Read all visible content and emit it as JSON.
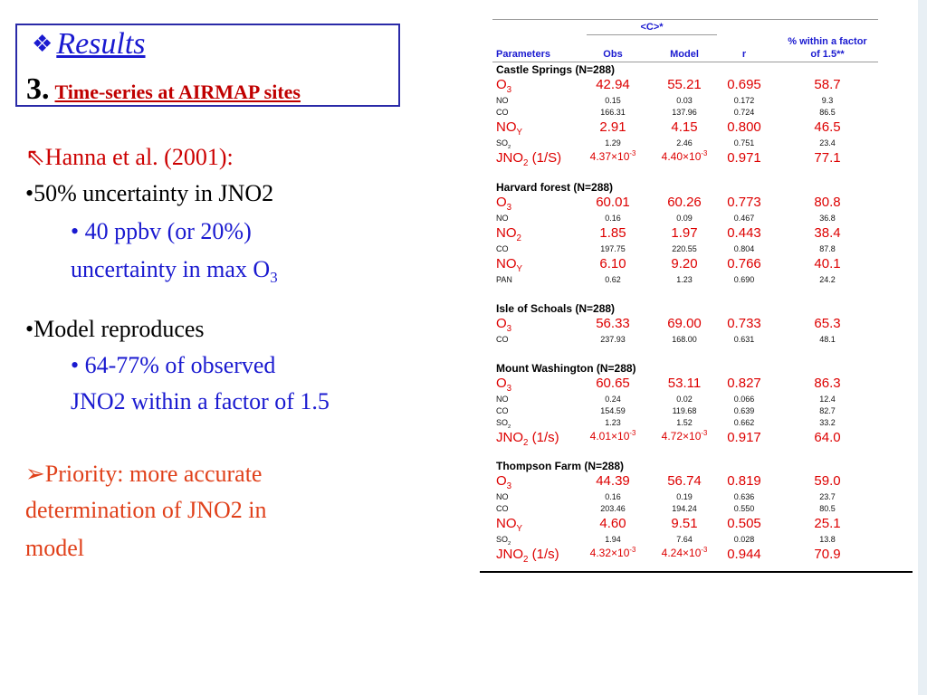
{
  "title": {
    "bullet": "❖",
    "heading": "Results",
    "number": "3.",
    "subtitle": "Time-series at AIRMAP sites"
  },
  "left": {
    "hanna_arrow": "⇖",
    "hanna": "Hanna et al. (2001):",
    "b1": "•50% uncertainty in JNO2",
    "b1a_line1": "• 40 ppbv (or 20%)",
    "b1a_line2": "uncertainty in max O",
    "b1a_sub": "3",
    "b2": "•Model reproduces",
    "b2a_line1": "• 64-77% of observed",
    "b2a_line2": "JNO2 within a factor of 1.5",
    "priority_arrow": "➢",
    "p_line1": "Priority: more accurate",
    "p_line2": "determination of JNO2 in",
    "p_line3": "model"
  },
  "table": {
    "group_header": "<C>*",
    "headers": {
      "param": "Parameters",
      "obs": "Obs",
      "model": "Model",
      "r": "r",
      "factor1": "% within a factor",
      "factor2": "of 1.5**"
    },
    "sites": [
      {
        "name": "Castle Springs (N=288)",
        "rows": [
          {
            "p": "O",
            "ps": "3",
            "o": "42.94",
            "m": "55.21",
            "r": "0.695",
            "f": "58.7",
            "big": true
          },
          {
            "p": "NO",
            "o": "0.15",
            "m": "0.03",
            "r": "0.172",
            "f": "9.3",
            "big": false
          },
          {
            "p": "CO",
            "o": "166.31",
            "m": "137.96",
            "r": "0.724",
            "f": "86.5",
            "big": false
          },
          {
            "p": "NO",
            "ps": "Y",
            "o": "2.91",
            "m": "4.15",
            "r": "0.800",
            "f": "46.5",
            "big": true
          },
          {
            "p": "SO",
            "ps": "2",
            "o": "1.29",
            "m": "2.46",
            "r": "0.751",
            "f": "23.4",
            "big": false
          },
          {
            "p": "JNO",
            "ps": "2",
            "pt": " (1/S)",
            "o": "4.37×10",
            "oe": "-3",
            "m": "4.40×10",
            "me": "-3",
            "r": "0.971",
            "f": "77.1",
            "big": true
          }
        ]
      },
      {
        "name": "Harvard forest (N=288)",
        "rows": [
          {
            "p": "O",
            "ps": "3",
            "o": "60.01",
            "m": "60.26",
            "r": "0.773",
            "f": "80.8",
            "big": true
          },
          {
            "p": "NO",
            "o": "0.16",
            "m": "0.09",
            "r": "0.467",
            "f": "36.8",
            "big": false
          },
          {
            "p": "NO",
            "ps": "2",
            "o": "1.85",
            "m": "1.97",
            "r": "0.443",
            "f": "38.4",
            "big": true
          },
          {
            "p": "CO",
            "o": "197.75",
            "m": "220.55",
            "r": "0.804",
            "f": "87.8",
            "big": false
          },
          {
            "p": "NO",
            "ps": "Y",
            "o": "6.10",
            "m": "9.20",
            "r": "0.766",
            "f": "40.1",
            "big": true
          },
          {
            "p": "PAN",
            "o": "0.62",
            "m": "1.23",
            "r": "0.690",
            "f": "24.2",
            "big": false
          }
        ]
      },
      {
        "name": "Isle of Schoals (N=288)",
        "rows": [
          {
            "p": "O",
            "ps": "3",
            "o": "56.33",
            "m": "69.00",
            "r": "0.733",
            "f": "65.3",
            "big": true
          },
          {
            "p": "CO",
            "o": "237.93",
            "m": "168.00",
            "r": "0.631",
            "f": "48.1",
            "big": false
          }
        ]
      },
      {
        "name": "Mount Washington (N=288)",
        "rows": [
          {
            "p": "O",
            "ps": "3",
            "o": "60.65",
            "m": "53.11",
            "r": "0.827",
            "f": "86.3",
            "big": true
          },
          {
            "p": "NO",
            "o": "0.24",
            "m": "0.02",
            "r": "0.066",
            "f": "12.4",
            "big": false
          },
          {
            "p": "CO",
            "o": "154.59",
            "m": "119.68",
            "r": "0.639",
            "f": "82.7",
            "big": false
          },
          {
            "p": "SO",
            "ps": "2",
            "o": "1.23",
            "m": "1.52",
            "r": "0.662",
            "f": "33.2",
            "big": false
          },
          {
            "p": "JNO",
            "ps": "2",
            "pt": " (1/s)",
            "o": "4.01×10",
            "oe": "-3",
            "m": "4.72×10",
            "me": "-3",
            "r": "0.917",
            "f": "64.0",
            "big": true
          }
        ]
      },
      {
        "name": "Thompson Farm (N=288)",
        "rows": [
          {
            "p": "O",
            "ps": "3",
            "o": "44.39",
            "m": "56.74",
            "r": "0.819",
            "f": "59.0",
            "big": true
          },
          {
            "p": "NO",
            "o": "0.16",
            "m": "0.19",
            "r": "0.636",
            "f": "23.7",
            "big": false
          },
          {
            "p": "CO",
            "o": "203.46",
            "m": "194.24",
            "r": "0.550",
            "f": "80.5",
            "big": false
          },
          {
            "p": "NO",
            "ps": "Y",
            "o": "4.60",
            "m": "9.51",
            "r": "0.505",
            "f": "25.1",
            "big": true
          },
          {
            "p": "SO",
            "ps": "2",
            "o": "1.94",
            "m": "7.64",
            "r": "0.028",
            "f": "13.8",
            "big": false
          },
          {
            "p": "JNO",
            "ps": "2",
            "pt": " (1/s)",
            "o": "4.32×10",
            "oe": "-3",
            "m": "4.24×10",
            "me": "-3",
            "r": "0.944",
            "f": "70.9",
            "big": true
          }
        ]
      }
    ]
  }
}
